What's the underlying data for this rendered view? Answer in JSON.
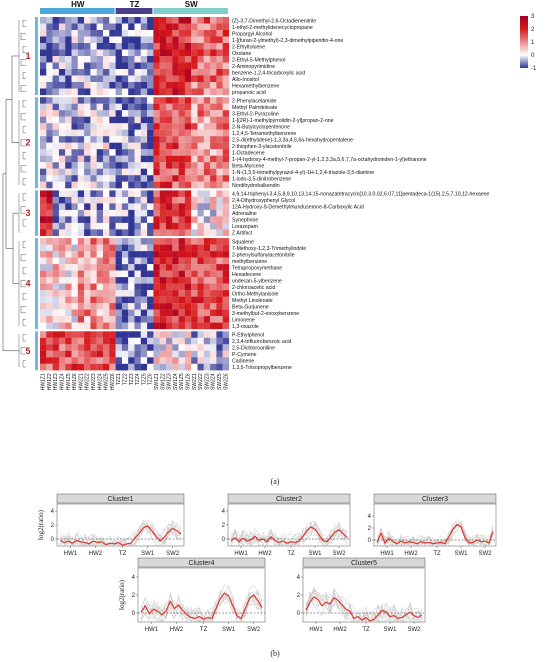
{
  "panel_a_label": "(a)",
  "panel_b_label": "(b)",
  "chart_data": [
    {
      "type": "heatmap",
      "groups": [
        {
          "name": "HW",
          "color": "#4aa8dc",
          "count": 12
        },
        {
          "name": "TZ",
          "color": "#4b3f8a",
          "count": 6
        },
        {
          "name": "SW",
          "color": "#7fd0cc",
          "count": 12
        }
      ],
      "columns": [
        "HW1Z1",
        "HW1Z2",
        "HW1Z3",
        "HW1Z4",
        "HW1Z5",
        "HW1Z6",
        "HW2Z1",
        "HW2Z2",
        "HW2Z3",
        "HW2Z4",
        "HW2Z5",
        "HW2Z6",
        "TZZ1",
        "TZZ2",
        "TZZ3",
        "TZZ4",
        "TZZ5",
        "TZZ6",
        "SW1Z1",
        "SW1Z2",
        "SW1Z3",
        "SW1Z4",
        "SW1Z5",
        "SW1Z6",
        "SW2Z1",
        "SW2Z2",
        "SW2Z3",
        "SW2Z4",
        "SW2Z5",
        "SW2Z6"
      ],
      "clusters": [
        {
          "id": "1",
          "rows": [
            "(Z)-3,7-Dimethyl-2,6-Octadienenitrile",
            "1-ethyl-2-methylidenecyclopropane",
            "Propargyl Alcohol",
            "1-[(furan-2-ylmethyl)-2,3-dimethylpiperidin-4-one",
            "2-Ethyltoluene",
            "Oxolane",
            "2-Ethyl-5-Methylphenol",
            "2-Aminopyrimidine",
            "benzene-1,2,4-tricarboxylic acid",
            "Allo-Inositol",
            "Hexamethylbenzene",
            "propanoic acid"
          ]
        },
        {
          "id": "2",
          "rows": [
            "2-Phenylacetamide",
            "Methyl Palmitoleate",
            "3-Ethyl-2-Pyrazoline",
            "1-[(2R)-1-methylpyrrolidin-2-yl]propan-2-one",
            "2-N-Butylcyclopentenone",
            "1,2,4,5-Tetramethylbenzene",
            "2,5-di(ethylidene)-1,3,3a,4,6,6a-hexahydropentalene",
            "2-thiophen-3-ylacetonitrile",
            "1-Octadecene",
            "1-(4-hydroxy-4-methyl-7-propan-2-yl-1,2,3,3a,5,6,7,7a-octahydroinden-1-yl)ethanone",
            "Beta-Myrcene",
            "1-N-(1,3,5-trimethylpyrazol-4-yl)-1H-1,2,4-triazole-3,5-diamine",
            "1-iodo-3,5-dinitrobenzene",
            "Nordihydrohalkendin"
          ]
        },
        {
          "id": "3",
          "rows": [
            "4,9,14-triphenyl-3,4,5,8,9,10,13,14,15-nonazatetracyclo[10.3.0.02,6.07,11]pentadeca-1(15),2,5,7,10,12-hexaene",
            "2,4-Dihydroxyphenyl Glycol",
            "12A-Hydroxy-9-Demethylmunduserone-8-Carboxylic Acid",
            "Adrenaline",
            "Synephrine",
            "Lorazepam",
            "Z Artifact"
          ]
        },
        {
          "id": "4",
          "rows": [
            "Squalene",
            "7-Methoxy-1,2,3-Trimethylindole",
            "2-phenylsulfanylacetonitrile",
            "methylbenzene",
            "Tetrapropoxymethane",
            "Hexadecene",
            "undecan-5-ylbenzene",
            "2-chloroacetic acid",
            "Ortho-Methylanisole",
            "Methyl Linolenate",
            "Beta-Gurjunene",
            "3-methylbut-2-enoxybenzene",
            "Limonene",
            "1,3-oxazole"
          ]
        },
        {
          "id": "5",
          "rows": [
            "P-Ethylphenol",
            "2,3,4-trifluorobenzoic acid",
            "2,5-Dichloroaniline",
            "P-Cymene",
            "Cadinene",
            "1,3,5-Triisopropylbenzene"
          ]
        }
      ],
      "legend": {
        "min": -1,
        "max": 3,
        "ticks": [
          "3",
          "2",
          "1",
          "0",
          "-1"
        ],
        "colors": [
          "#313695",
          "#ffffff",
          "#d7191c",
          "#a50026"
        ]
      }
    },
    {
      "type": "line",
      "ylabel": "log2(ratio)",
      "x_ticks": [
        "HW1",
        "HW2",
        "TZ",
        "SW1",
        "SW2"
      ],
      "panels": [
        {
          "title": "Cluster1",
          "yticks": [
            "4",
            "2",
            "0"
          ],
          "ylim": [
            -1,
            5
          ],
          "values": [
            -0.2,
            -0.5,
            -0.3,
            -0.6,
            -0.2,
            -0.4,
            -0.5,
            -0.7,
            -0.3,
            -0.5,
            -0.4,
            -0.8,
            -0.6,
            -0.7,
            -0.5,
            -0.9,
            -0.7,
            -0.6,
            0.2,
            0.8,
            1.6,
            1.9,
            1.2,
            0.4,
            -0.3,
            0.3,
            1.0,
            1.5,
            1.2,
            0.7
          ]
        },
        {
          "title": "Cluster2",
          "yticks": [
            "4",
            "2",
            "0"
          ],
          "ylim": [
            -1,
            5
          ],
          "values": [
            -0.3,
            0.2,
            -0.4,
            0.1,
            -0.3,
            -0.1,
            0.4,
            -0.2,
            0.0,
            -0.4,
            0.3,
            -0.2,
            -0.5,
            -0.3,
            -0.6,
            -0.4,
            -0.5,
            -0.3,
            0.4,
            1.2,
            1.7,
            1.4,
            0.6,
            -0.2,
            -0.4,
            0.3,
            1.0,
            1.3,
            0.8,
            0.2
          ]
        },
        {
          "title": "Cluster3",
          "yticks": [
            "4",
            "2",
            "0"
          ],
          "ylim": [
            -1,
            6
          ],
          "values": [
            -0.4,
            1.1,
            -0.5,
            0.3,
            -0.3,
            -0.6,
            -0.2,
            -0.5,
            -0.3,
            -0.4,
            -0.6,
            -0.3,
            -0.5,
            -0.4,
            -0.6,
            -0.5,
            -0.4,
            -0.6,
            0.6,
            1.8,
            2.6,
            2.2,
            0.4,
            -0.5,
            -0.4,
            0.0,
            -0.3,
            -0.2,
            -0.5,
            1.4
          ]
        },
        {
          "title": "Cluster4",
          "yticks": [
            "4",
            "2",
            "0"
          ],
          "ylim": [
            -1,
            5
          ],
          "values": [
            0.1,
            0.8,
            -0.1,
            0.4,
            0.2,
            -0.2,
            0.2,
            1.3,
            0.5,
            0.9,
            0.3,
            -0.2,
            -0.5,
            -0.6,
            -0.4,
            -0.7,
            -0.5,
            -0.6,
            0.5,
            1.6,
            2.2,
            1.9,
            0.8,
            -0.3,
            -0.6,
            0.5,
            1.6,
            2.0,
            1.4,
            0.6
          ]
        },
        {
          "title": "Cluster5",
          "yticks": [
            "4",
            "2",
            "0"
          ],
          "ylim": [
            -1,
            5
          ],
          "values": [
            0.3,
            1.2,
            1.8,
            1.5,
            0.8,
            1.2,
            1.0,
            1.7,
            1.4,
            0.9,
            0.4,
            0.2,
            -0.6,
            -0.4,
            -0.8,
            -0.5,
            -0.9,
            -0.7,
            -0.2,
            0.3,
            0.1,
            -0.4,
            -0.3,
            -0.6,
            -0.5,
            -0.2,
            0.1,
            -0.3,
            -0.5,
            -0.2
          ]
        }
      ]
    }
  ]
}
